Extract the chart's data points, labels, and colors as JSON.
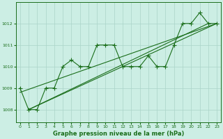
{
  "hours": [
    0,
    1,
    2,
    3,
    4,
    5,
    6,
    7,
    8,
    9,
    10,
    11,
    12,
    13,
    14,
    15,
    16,
    17,
    18,
    19,
    20,
    21,
    22,
    23
  ],
  "pressure": [
    1009.0,
    1008.0,
    1008.0,
    1009.0,
    1009.0,
    1010.0,
    1010.3,
    1010.0,
    1010.0,
    1011.0,
    1011.0,
    1011.0,
    1010.0,
    1010.0,
    1010.0,
    1010.5,
    1010.0,
    1010.0,
    1011.0,
    1012.0,
    1012.0,
    1012.5,
    1012.0,
    1012.0
  ],
  "trend_lines": [
    {
      "x": [
        0,
        23
      ],
      "y": [
        1008.8,
        1012.0
      ]
    },
    {
      "x": [
        1,
        22
      ],
      "y": [
        1008.0,
        1012.0
      ]
    },
    {
      "x": [
        1,
        23
      ],
      "y": [
        1008.0,
        1012.0
      ]
    }
  ],
  "bg_color": "#cceee4",
  "line_color": "#1a6e1a",
  "grid_color": "#aad4c8",
  "xlabel": "Graphe pression niveau de la mer (hPa)",
  "ylim": [
    1007.4,
    1013.0
  ],
  "xlim": [
    -0.5,
    23.5
  ],
  "yticks": [
    1008,
    1009,
    1010,
    1011,
    1012
  ],
  "xticks": [
    0,
    1,
    2,
    3,
    4,
    5,
    6,
    7,
    8,
    9,
    10,
    11,
    12,
    13,
    14,
    15,
    16,
    17,
    18,
    19,
    20,
    21,
    22,
    23
  ],
  "marker": "+",
  "markersize": 4,
  "linewidth": 0.8,
  "tick_fontsize": 4.5,
  "xlabel_fontsize": 6.0
}
